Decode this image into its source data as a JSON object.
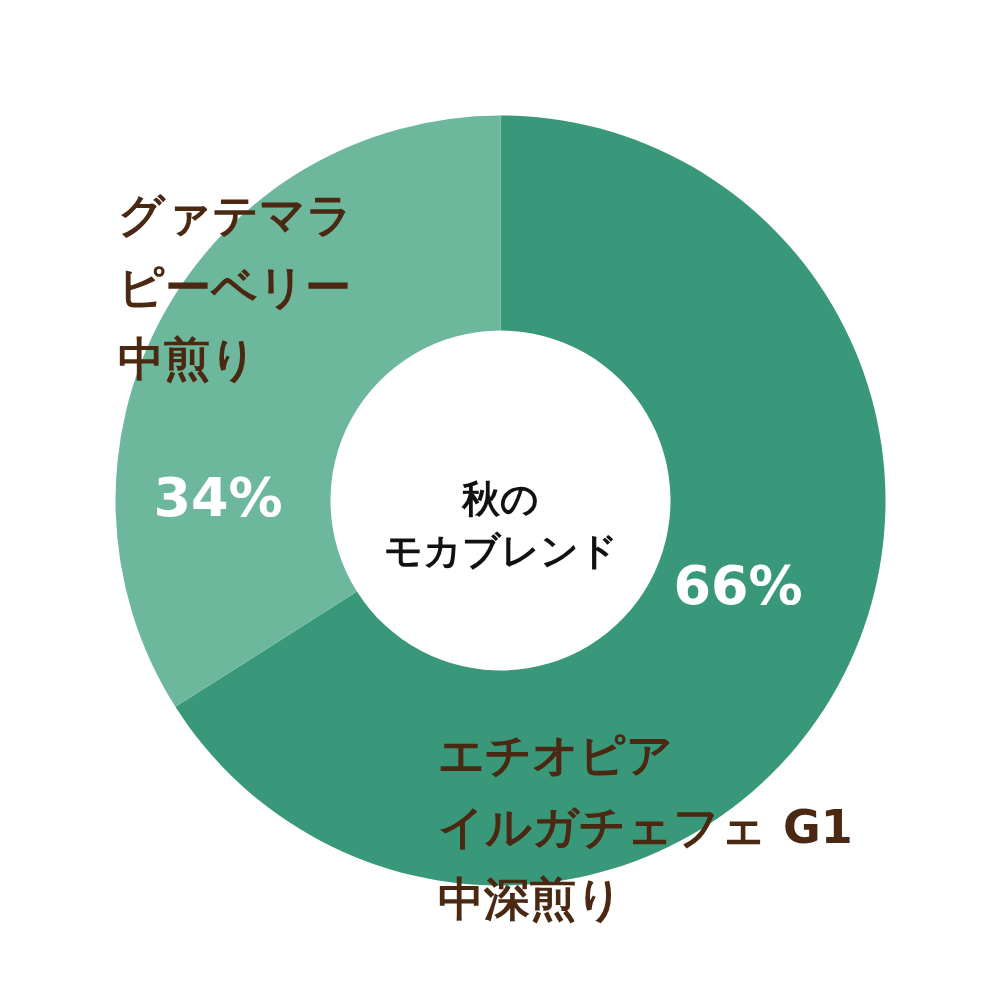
{
  "chart_data": {
    "type": "donut",
    "title": "秋のモカブレンド",
    "categories": [
      "エチオピアイルガチェフェ G1中深煎り",
      "グァテマラピーベリー中煎り"
    ],
    "values": [
      66,
      34
    ],
    "colors": [
      "#3a987a",
      "#6db89d"
    ],
    "value_labels": [
      "66%",
      "34%"
    ]
  }
}
